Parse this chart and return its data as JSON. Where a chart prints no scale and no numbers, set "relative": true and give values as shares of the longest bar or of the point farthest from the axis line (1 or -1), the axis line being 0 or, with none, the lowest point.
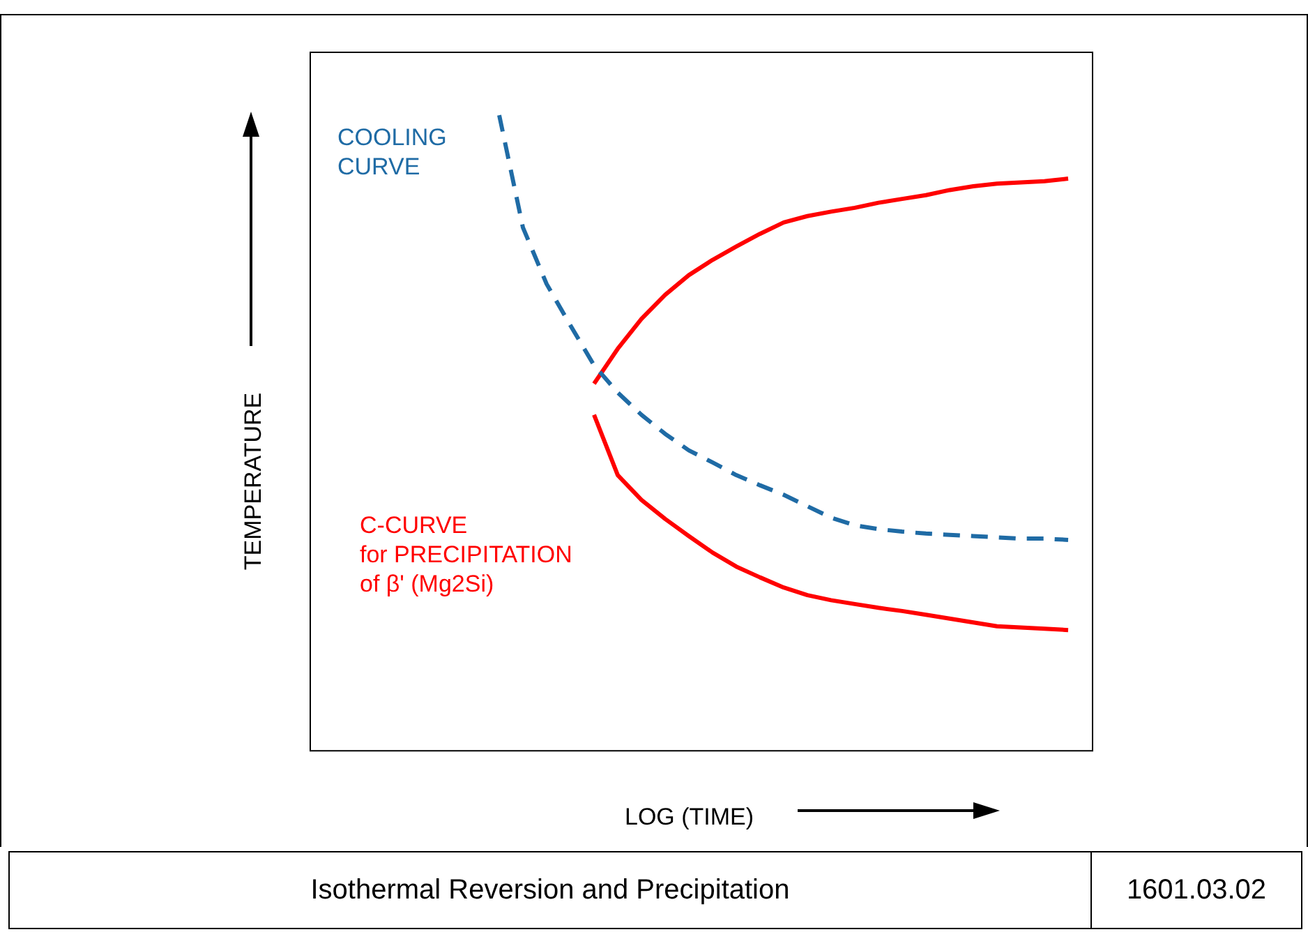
{
  "chart_data": {
    "type": "line",
    "relative": true,
    "title": "Isothermal Reversion and Precipitation",
    "xlabel": "LOG (TIME)",
    "ylabel": "TEMPERATURE",
    "annotations": [
      "1601.03.02"
    ],
    "marker": "none",
    "categories": [
      null,
      null,
      null,
      null,
      null,
      null,
      null,
      null,
      null,
      null,
      null,
      null,
      null,
      null,
      null,
      null,
      null,
      null,
      null,
      null,
      null,
      null,
      null,
      null,
      null,
      null,
      null,
      null,
      null,
      null,
      null,
      null,
      null,
      null
    ],
    "series": [
      {
        "name": "COOLING\nCURVE",
        "color": "#1f6ba5",
        "line_style": "dashed",
        "values": [
          null,
          null,
          null,
          null,
          null,
          null,
          null,
          null,
          1.0,
          0.823,
          0.734,
          0.669,
          0.606,
          0.563,
          0.528,
          0.498,
          0.472,
          0.453,
          0.433,
          0.417,
          0.402,
          0.384,
          0.366,
          0.354,
          0.348,
          0.344,
          0.341,
          0.339,
          0.337,
          0.335,
          0.333,
          0.333,
          0.331,
          null
        ]
      },
      {
        "name": "C-CURVE\nfor PRECIPITATION\nof β' (Mg2Si)",
        "color": "#ff0000",
        "line_style": "solid",
        "values": [
          null,
          null,
          null,
          null,
          null,
          null,
          null,
          null,
          null,
          null,
          null,
          null,
          0.577,
          0.632,
          0.679,
          0.717,
          0.748,
          0.772,
          0.793,
          0.813,
          0.831,
          0.841,
          0.848,
          0.854,
          0.862,
          0.868,
          0.874,
          0.882,
          0.888,
          0.892,
          0.894,
          0.896,
          0.9,
          null
        ]
      },
      {
        "color": "#ff0000",
        "line_style": "solid",
        "values": [
          null,
          null,
          null,
          null,
          null,
          null,
          null,
          null,
          null,
          null,
          null,
          null,
          0.528,
          0.433,
          0.394,
          0.364,
          0.337,
          0.311,
          0.289,
          0.272,
          0.256,
          0.244,
          0.236,
          0.23,
          0.224,
          0.219,
          0.213,
          0.207,
          0.201,
          0.195,
          0.193,
          0.191,
          0.189,
          null
        ]
      }
    ]
  }
}
